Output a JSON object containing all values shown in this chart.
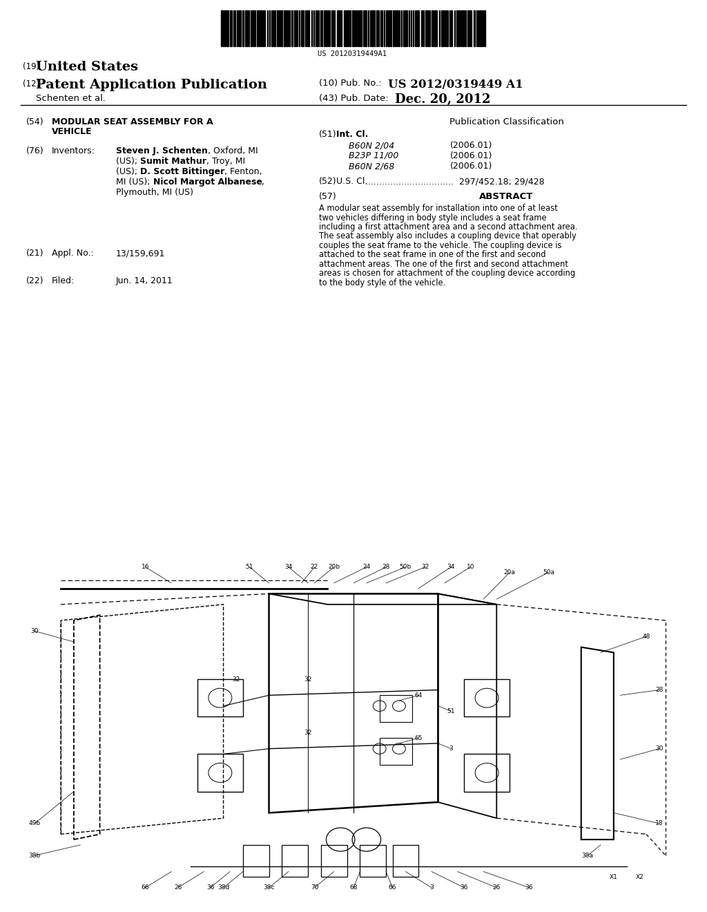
{
  "background_color": "#ffffff",
  "barcode_text": "US 20120319449A1",
  "country_prefix": "(19)",
  "country": "United States",
  "type_prefix": "(12)",
  "type": "Patent Application Publication",
  "pub_no_prefix": "(10) Pub. No.:",
  "pub_no": "US 2012/0319449 A1",
  "inventor_line": "Schenten et al.",
  "date_prefix": "(43) Pub. Date:",
  "date": "Dec. 20, 2012",
  "title_num": "(54)",
  "title_line1": "MODULAR SEAT ASSEMBLY FOR A",
  "title_line2": "VEHICLE",
  "inventors_num": "(76)",
  "inventors_label": "Inventors:",
  "inv_lines_bold": [
    [
      [
        "Steven J. Schenten",
        true
      ],
      [
        ", Oxford, MI",
        false
      ]
    ],
    [
      [
        "(US); ",
        false
      ],
      [
        "Sumit Mathur",
        true
      ],
      [
        ", Troy, MI",
        false
      ]
    ],
    [
      [
        "(US); ",
        false
      ],
      [
        "D. Scott Bittinger",
        true
      ],
      [
        ", Fenton,",
        false
      ]
    ],
    [
      [
        "MI (US); ",
        false
      ],
      [
        "Nicol Margot Albanese",
        true
      ],
      [
        ",",
        false
      ]
    ],
    [
      [
        "Plymouth, MI (US)",
        false
      ]
    ]
  ],
  "appl_num": "(21)",
  "appl_label": "Appl. No.:",
  "appl_value": "13/159,691",
  "filed_num": "(22)",
  "filed_label": "Filed:",
  "filed_value": "Jun. 14, 2011",
  "pub_class_title": "Publication Classification",
  "int_cl_num": "(51)",
  "int_cl_label": "Int. Cl.",
  "int_cl_entries": [
    [
      "B60N 2/04",
      "(2006.01)"
    ],
    [
      "B23P 11/00",
      "(2006.01)"
    ],
    [
      "B60N 2/68",
      "(2006.01)"
    ]
  ],
  "us_cl_num": "(52)",
  "us_cl_label": "U.S. Cl.",
  "us_cl_dots": "................................",
  "us_cl_value": "297/452.18; 29/428",
  "abstract_num": "(57)",
  "abstract_title": "ABSTRACT",
  "abstract_text": "A modular seat assembly for installation into one of at least two vehicles differing in body style includes a seat frame including a first attachment area and a second attachment area. The seat assembly also includes a coupling device that operably couples the seat frame to the vehicle. The coupling device is attached to the seat frame in one of the first and second attachment areas. The one of the first and second attachment areas is chosen for attachment of the coupling device according to the body style of the vehicle."
}
